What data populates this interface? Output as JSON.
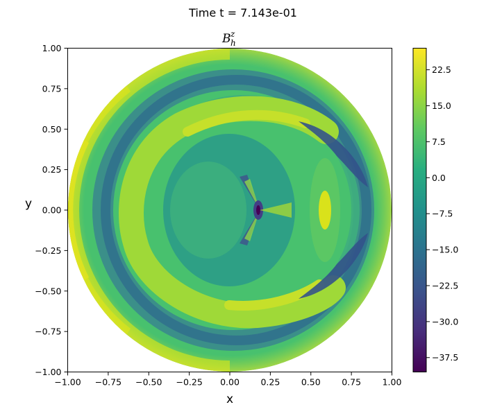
{
  "figure": {
    "suptitle": "Time t =  7.143e-01"
  },
  "chart_data": {
    "type": "heatmap",
    "subtype": "filled-contour on unit disk",
    "title": {
      "base": "B",
      "sub": "h",
      "sup": "z"
    },
    "xlabel": "x",
    "ylabel": "y",
    "xlim": [
      -1.0,
      1.0
    ],
    "ylim": [
      -1.0,
      1.0
    ],
    "xticks": [
      "−1.00",
      "−0.75",
      "−0.50",
      "−0.25",
      "0.00",
      "0.25",
      "0.50",
      "0.75",
      "1.00"
    ],
    "yticks": [
      "−1.00",
      "−0.75",
      "−0.50",
      "−0.25",
      "0.00",
      "0.25",
      "0.50",
      "0.75",
      "1.00"
    ],
    "colormap": "viridis",
    "colorbar": {
      "range": [
        -40.5,
        27.0
      ],
      "ticks": [
        "22.5",
        "15.0",
        "7.5",
        "0.0",
        "−7.5",
        "−15.0",
        "−22.5",
        "−30.0",
        "−37.5"
      ],
      "tick_values": [
        22.5,
        15.0,
        7.5,
        0.0,
        -7.5,
        -15.0,
        -22.5,
        -30.0,
        -37.5
      ]
    },
    "field_features": [
      {
        "feature": "outer-rim band",
        "value": 17,
        "region": "r 0.93-1.0, strongest at x<0"
      },
      {
        "feature": "dark ring",
        "value": -16,
        "region": "r ~0.8"
      },
      {
        "feature": "bright C-shaped arc",
        "value": 18,
        "region": "r ~0.5-0.6 around center (0.15,0)"
      },
      {
        "feature": "dark crescent",
        "value": -24,
        "region": "upper-right and lower-right near (0.55,±0.45)"
      },
      {
        "feature": "central singularity",
        "value": -38,
        "region": "near (0.18, 0.0)"
      },
      {
        "feature": "hot spot",
        "value": 22,
        "region": "near (0.6, 0.0)"
      }
    ]
  }
}
